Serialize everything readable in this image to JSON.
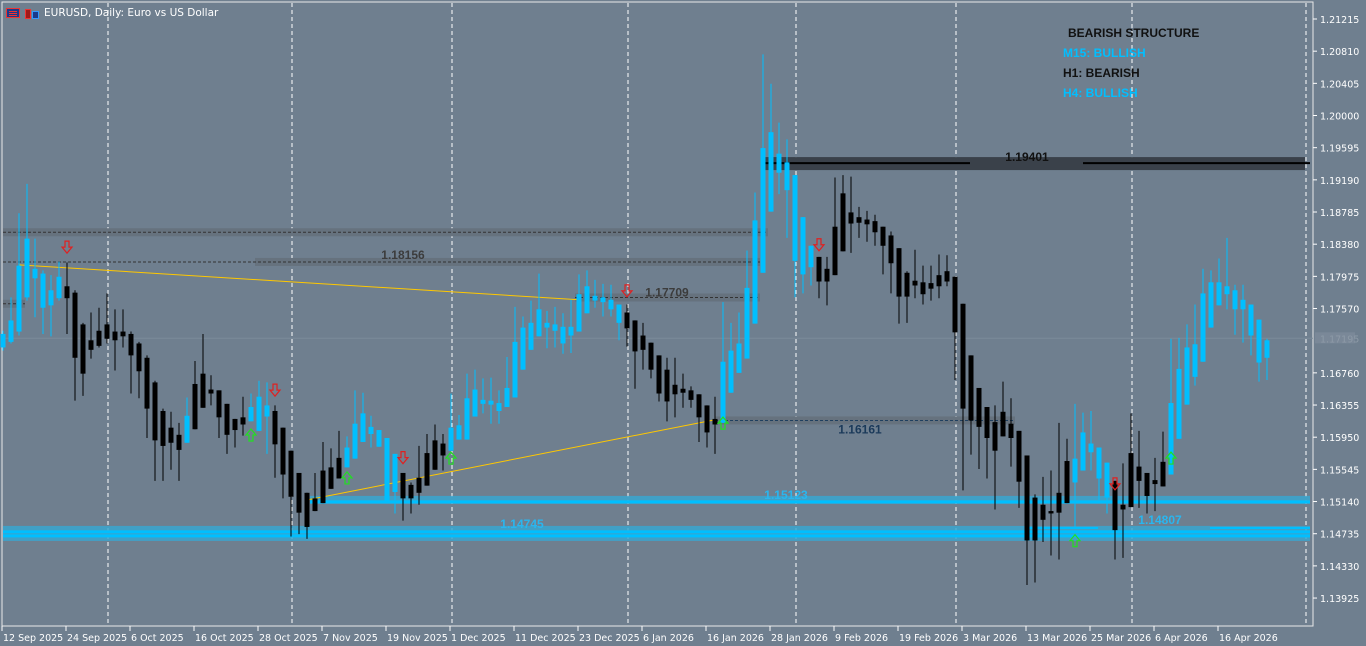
{
  "window": {
    "title": "EURUSD, Daily:  Euro vs US Dollar",
    "icons": [
      "chart-bars-icon",
      "chart-window-icon"
    ]
  },
  "structure_panel": {
    "title": "BEARISH STRUCTURE",
    "rows": [
      {
        "label": "M15: BULLISH",
        "state": "bull"
      },
      {
        "label": "H1: BEARISH",
        "state": "bear"
      },
      {
        "label": "H4: BULLISH",
        "state": "bull"
      }
    ]
  },
  "colors": {
    "background": "#6f7f8f",
    "bull": "#00bfff",
    "bear": "#000000",
    "trendline": "#ffc800",
    "sell_arrow": "#e02020",
    "buy_arrow": "#20e020",
    "grid_separator": "#ffffff"
  },
  "chart_data": {
    "type": "candlestick",
    "symbol": "EURUSD",
    "timeframe": "Daily",
    "ylim": [
      1.1359,
      1.2145
    ],
    "current_price": "1.17195",
    "price_ticks": [
      "1.21215",
      "1.20810",
      "1.20405",
      "1.20000",
      "1.19595",
      "1.19190",
      "1.18785",
      "1.18380",
      "1.17975",
      "1.17570",
      "1.16760",
      "1.16355",
      "1.15950",
      "1.15545",
      "1.15140",
      "1.14735",
      "1.14330",
      "1.13925"
    ],
    "date_ticks": [
      "12 Sep 2025",
      "24 Sep 2025",
      "6 Oct 2025",
      "16 Oct 2025",
      "28 Oct 2025",
      "7 Nov 2025",
      "19 Nov 2025",
      "1 Dec 2025",
      "11 Dec 2025",
      "23 Dec 2025",
      "6 Jan 2026",
      "16 Jan 2026",
      "28 Jan 2026",
      "9 Feb 2026",
      "19 Feb 2026",
      "3 Mar 2026",
      "13 Mar 2026",
      "25 Mar 2026",
      "6 Apr 2026",
      "16 Apr 2026"
    ],
    "candles_ohlc_trend": [
      [
        1.1708,
        1.1729,
        1.1704,
        1.1725,
        1
      ],
      [
        1.1715,
        1.1771,
        1.1713,
        1.1742,
        1
      ],
      [
        1.1728,
        1.1877,
        1.1723,
        1.1811,
        1
      ],
      [
        1.1771,
        1.1914,
        1.1767,
        1.1845,
        1
      ],
      [
        1.1795,
        1.1845,
        1.1746,
        1.1807,
        1
      ],
      [
        1.1801,
        1.1805,
        1.1725,
        1.1758,
        1
      ],
      [
        1.1761,
        1.1799,
        1.1722,
        1.178,
        1
      ],
      [
        1.177,
        1.1816,
        1.1767,
        1.1797,
        1
      ],
      [
        1.1785,
        1.1815,
        1.1725,
        1.177,
        0
      ],
      [
        1.1777,
        1.178,
        1.1641,
        1.1695,
        0
      ],
      [
        1.1737,
        1.1739,
        1.1647,
        1.1675,
        0
      ],
      [
        1.1717,
        1.1752,
        1.1694,
        1.1705,
        0
      ],
      [
        1.1729,
        1.1758,
        1.1708,
        1.171,
        0
      ],
      [
        1.1737,
        1.1776,
        1.1713,
        1.1719,
        0
      ],
      [
        1.1728,
        1.1756,
        1.1679,
        1.1717,
        0
      ],
      [
        1.1728,
        1.1756,
        1.1708,
        1.1722,
        0
      ],
      [
        1.1725,
        1.1728,
        1.165,
        1.1698,
        0
      ],
      [
        1.1713,
        1.1715,
        1.1644,
        1.1678,
        0
      ],
      [
        1.1695,
        1.1698,
        1.1594,
        1.1631,
        0
      ],
      [
        1.1664,
        1.1666,
        1.154,
        1.1591,
        0
      ],
      [
        1.1628,
        1.1631,
        1.154,
        1.1584,
        0
      ],
      [
        1.1607,
        1.1627,
        1.1554,
        1.1588,
        0
      ],
      [
        1.1598,
        1.1613,
        1.154,
        1.1579,
        0
      ],
      [
        1.1588,
        1.1645,
        1.1588,
        1.1622,
        1
      ],
      [
        1.1605,
        1.1691,
        1.1605,
        1.1662,
        0
      ],
      [
        1.1632,
        1.1725,
        1.1632,
        1.1675,
        0
      ],
      [
        1.1655,
        1.1673,
        1.1635,
        1.165,
        0
      ],
      [
        1.1654,
        1.1654,
        1.1594,
        1.162,
        0
      ],
      [
        1.1637,
        1.1637,
        1.1574,
        1.1598,
        0
      ],
      [
        1.1618,
        1.1618,
        1.1582,
        1.1604,
        0
      ],
      [
        1.162,
        1.1646,
        1.1597,
        1.1611,
        0
      ],
      [
        1.1615,
        1.165,
        1.1615,
        1.1633,
        1
      ],
      [
        1.1603,
        1.1666,
        1.1603,
        1.1646,
        1
      ],
      [
        1.1635,
        1.1664,
        1.1574,
        1.1621,
        1
      ],
      [
        1.1628,
        1.1635,
        1.1544,
        1.1586,
        0
      ],
      [
        1.1607,
        1.1607,
        1.1518,
        1.1548,
        0
      ],
      [
        1.1578,
        1.1578,
        1.147,
        1.152,
        0
      ],
      [
        1.155,
        1.155,
        1.1473,
        1.15,
        0
      ],
      [
        1.1525,
        1.1525,
        1.1467,
        1.1482,
        0
      ],
      [
        1.1502,
        1.155,
        1.1502,
        1.1518,
        0
      ],
      [
        1.1512,
        1.1589,
        1.1512,
        1.1553,
        0
      ],
      [
        1.153,
        1.1581,
        1.153,
        1.1557,
        0
      ],
      [
        1.1543,
        1.1603,
        1.1543,
        1.1569,
        0
      ],
      [
        1.1557,
        1.1596,
        1.1557,
        1.1582,
        1
      ],
      [
        1.1568,
        1.1654,
        1.1568,
        1.1612,
        1
      ],
      [
        1.1589,
        1.1651,
        1.1589,
        1.1625,
        1
      ],
      [
        1.1608,
        1.1622,
        1.1582,
        1.1599,
        1
      ],
      [
        1.1604,
        1.1604,
        1.1583,
        1.1583,
        1
      ],
      [
        1.1594,
        1.1594,
        1.1515,
        1.1515,
        1
      ],
      [
        1.1574,
        1.1574,
        1.1499,
        1.1526,
        1
      ],
      [
        1.155,
        1.155,
        1.149,
        1.1518,
        0
      ],
      [
        1.1535,
        1.1538,
        1.1499,
        1.1518,
        0
      ],
      [
        1.1525,
        1.1584,
        1.151,
        1.1544,
        0
      ],
      [
        1.1534,
        1.1599,
        1.1534,
        1.1575,
        0
      ],
      [
        1.1554,
        1.1611,
        1.1554,
        1.1591,
        0
      ],
      [
        1.1572,
        1.1599,
        1.1553,
        1.1587,
        0
      ],
      [
        1.1578,
        1.165,
        1.1578,
        1.1607,
        1
      ],
      [
        1.1592,
        1.1623,
        1.1592,
        1.161,
        1
      ],
      [
        1.1592,
        1.1675,
        1.1592,
        1.1644,
        1
      ],
      [
        1.1621,
        1.168,
        1.1621,
        1.1655,
        1
      ],
      [
        1.1637,
        1.1669,
        1.1625,
        1.1642,
        1
      ],
      [
        1.1636,
        1.167,
        1.1612,
        1.1641,
        1
      ],
      [
        1.1628,
        1.1654,
        1.1612,
        1.1638,
        1
      ],
      [
        1.1633,
        1.1696,
        1.1633,
        1.1657,
        1
      ],
      [
        1.1645,
        1.1759,
        1.1645,
        1.1715,
        1
      ],
      [
        1.168,
        1.1747,
        1.168,
        1.1733,
        1
      ],
      [
        1.1705,
        1.1767,
        1.1705,
        1.1739,
        1
      ],
      [
        1.1722,
        1.1801,
        1.1722,
        1.1756,
        1
      ],
      [
        1.1739,
        1.1754,
        1.1707,
        1.1733,
        1
      ],
      [
        1.1737,
        1.1759,
        1.1708,
        1.1729,
        1
      ],
      [
        1.1734,
        1.1751,
        1.17,
        1.1713,
        1
      ],
      [
        1.1723,
        1.1768,
        1.1701,
        1.1734,
        1
      ],
      [
        1.1728,
        1.18,
        1.1728,
        1.1775,
        1
      ],
      [
        1.1751,
        1.1805,
        1.1751,
        1.1785,
        1
      ],
      [
        1.1773,
        1.1793,
        1.1758,
        1.1767,
        1
      ],
      [
        1.1771,
        1.1788,
        1.1747,
        1.1765,
        1
      ],
      [
        1.1768,
        1.1787,
        1.1747,
        1.1756,
        1
      ],
      [
        1.1762,
        1.1762,
        1.1717,
        1.1739,
        1
      ],
      [
        1.1752,
        1.1762,
        1.1709,
        1.1732,
        0
      ],
      [
        1.1742,
        1.1742,
        1.1656,
        1.1703,
        0
      ],
      [
        1.1723,
        1.1739,
        1.168,
        1.1705,
        0
      ],
      [
        1.1714,
        1.1714,
        1.1669,
        1.168,
        0
      ],
      [
        1.1698,
        1.1698,
        1.164,
        1.165,
        0
      ],
      [
        1.168,
        1.1695,
        1.1615,
        1.164,
        0
      ],
      [
        1.1661,
        1.1695,
        1.162,
        1.1649,
        0
      ],
      [
        1.1656,
        1.1675,
        1.1632,
        1.1651,
        0
      ],
      [
        1.1654,
        1.1659,
        1.1632,
        1.1642,
        0
      ],
      [
        1.1649,
        1.1649,
        1.1589,
        1.162,
        0
      ],
      [
        1.1635,
        1.1635,
        1.1582,
        1.1601,
        0
      ],
      [
        1.1618,
        1.1646,
        1.1574,
        1.1611,
        0
      ],
      [
        1.1613,
        1.1765,
        1.1613,
        1.169,
        1
      ],
      [
        1.1651,
        1.1739,
        1.1651,
        1.1704,
        1
      ],
      [
        1.1676,
        1.1752,
        1.1676,
        1.1713,
        1
      ],
      [
        1.1694,
        1.183,
        1.1694,
        1.1783,
        1
      ],
      [
        1.1738,
        1.1903,
        1.1738,
        1.1868,
        1
      ],
      [
        1.1802,
        1.2077,
        1.1802,
        1.1959,
        1
      ],
      [
        1.1879,
        1.204,
        1.1879,
        1.1979,
        1
      ],
      [
        1.1928,
        1.1991,
        1.1901,
        1.1952,
        1
      ],
      [
        1.1941,
        1.197,
        1.1846,
        1.1906,
        1
      ],
      [
        1.1925,
        1.1925,
        1.1771,
        1.1817,
        1
      ],
      [
        1.1872,
        1.1872,
        1.1776,
        1.18,
        1
      ],
      [
        1.1836,
        1.1836,
        1.1786,
        1.1809,
        1
      ],
      [
        1.1822,
        1.1822,
        1.177,
        1.1791,
        0
      ],
      [
        1.1807,
        1.1822,
        1.1761,
        1.1791,
        0
      ],
      [
        1.1799,
        1.1922,
        1.1799,
        1.186,
        0
      ],
      [
        1.1829,
        1.1925,
        1.1829,
        1.1902,
        0
      ],
      [
        1.1878,
        1.1923,
        1.1827,
        1.1864,
        0
      ],
      [
        1.1872,
        1.1885,
        1.1846,
        1.1865,
        0
      ],
      [
        1.1869,
        1.188,
        1.1841,
        1.1863,
        0
      ],
      [
        1.1867,
        1.1875,
        1.1836,
        1.1853,
        0
      ],
      [
        1.186,
        1.186,
        1.18,
        1.1836,
        0
      ],
      [
        1.1849,
        1.1854,
        1.1776,
        1.1814,
        0
      ],
      [
        1.1833,
        1.1833,
        1.1738,
        1.1772,
        0
      ],
      [
        1.1802,
        1.1804,
        1.1739,
        1.1772,
        0
      ],
      [
        1.1792,
        1.1831,
        1.177,
        1.1786,
        0
      ],
      [
        1.179,
        1.1811,
        1.1762,
        1.1775,
        0
      ],
      [
        1.1789,
        1.1811,
        1.1767,
        1.1782,
        0
      ],
      [
        1.1785,
        1.1825,
        1.177,
        1.1799,
        0
      ],
      [
        1.1791,
        1.1824,
        1.1785,
        1.1804,
        0
      ],
      [
        1.1797,
        1.1797,
        1.1667,
        1.1727,
        0
      ],
      [
        1.1763,
        1.1763,
        1.1528,
        1.1631,
        0
      ],
      [
        1.1698,
        1.1698,
        1.1573,
        1.1616,
        0
      ],
      [
        1.1657,
        1.1657,
        1.1555,
        1.1608,
        0
      ],
      [
        1.1633,
        1.1633,
        1.1543,
        1.1594,
        0
      ],
      [
        1.1614,
        1.1635,
        1.1504,
        1.1578,
        0
      ],
      [
        1.1596,
        1.1665,
        1.1596,
        1.1627,
        0
      ],
      [
        1.1612,
        1.1644,
        1.1558,
        1.1594,
        0
      ],
      [
        1.1603,
        1.1603,
        1.1506,
        1.1539,
        0
      ],
      [
        1.1572,
        1.1572,
        1.1409,
        1.1465,
        0
      ],
      [
        1.1465,
        1.1523,
        1.1412,
        1.1519,
        0
      ],
      [
        1.151,
        1.1545,
        1.1463,
        1.1491,
        0
      ],
      [
        1.1502,
        1.1553,
        1.1446,
        1.1499,
        0
      ],
      [
        1.15,
        1.1613,
        1.1441,
        1.1525,
        0
      ],
      [
        1.1512,
        1.1593,
        1.1512,
        1.1565,
        0
      ],
      [
        1.1538,
        1.1637,
        1.148,
        1.1568,
        1
      ],
      [
        1.1553,
        1.1626,
        1.1553,
        1.1601,
        1
      ],
      [
        1.1587,
        1.1628,
        1.1553,
        1.1576,
        1
      ],
      [
        1.1582,
        1.1582,
        1.1516,
        1.1543,
        1
      ],
      [
        1.1563,
        1.1563,
        1.1499,
        1.1519,
        1
      ],
      [
        1.154,
        1.154,
        1.1441,
        1.1478,
        0
      ],
      [
        1.151,
        1.1562,
        1.1443,
        1.1504,
        0
      ],
      [
        1.1507,
        1.1625,
        1.1507,
        1.1575,
        0
      ],
      [
        1.1558,
        1.1603,
        1.1506,
        1.154,
        0
      ],
      [
        1.1521,
        1.155,
        1.1499,
        1.155,
        0
      ],
      [
        1.1536,
        1.1569,
        1.1502,
        1.1541,
        0
      ],
      [
        1.1533,
        1.1602,
        1.1533,
        1.1564,
        0
      ],
      [
        1.1548,
        1.1719,
        1.1548,
        1.1638,
        1
      ],
      [
        1.1593,
        1.172,
        1.1593,
        1.1681,
        1
      ],
      [
        1.1636,
        1.1737,
        1.1636,
        1.1708,
        1
      ],
      [
        1.1671,
        1.1762,
        1.166,
        1.1712,
        1
      ],
      [
        1.169,
        1.1807,
        1.169,
        1.1776,
        1
      ],
      [
        1.1733,
        1.1805,
        1.1733,
        1.179,
        1
      ],
      [
        1.1761,
        1.182,
        1.1761,
        1.179,
        1
      ],
      [
        1.1785,
        1.1846,
        1.1756,
        1.1775,
        1
      ],
      [
        1.178,
        1.1787,
        1.1724,
        1.1756,
        1
      ],
      [
        1.1768,
        1.1787,
        1.1714,
        1.1756,
        1
      ],
      [
        1.1762,
        1.1762,
        1.1698,
        1.1723,
        1
      ],
      [
        1.1743,
        1.1743,
        1.1665,
        1.1689,
        1
      ],
      [
        1.1695,
        1.1719,
        1.1667,
        1.1717,
        1
      ]
    ],
    "levels": [
      {
        "price": 1.1853,
        "label": "",
        "style": "dashed"
      },
      {
        "price": 1.18156,
        "label": "1.18156",
        "style": "dashed"
      },
      {
        "price": 1.17709,
        "label": "1.17709",
        "style": "dashed"
      },
      {
        "price": 1.1763,
        "label": "",
        "style": "dashed"
      },
      {
        "price": 1.19401,
        "label": "1.19401",
        "style": "solid-black"
      },
      {
        "price": 1.16161,
        "label": "1.16161",
        "style": "dashed-blue"
      },
      {
        "price": 1.15123,
        "label": "1.15123",
        "style": "cyan"
      },
      {
        "price": 1.14745,
        "label": "1.14745",
        "style": "cyan"
      },
      {
        "price": 1.14807,
        "label": "1.14807",
        "style": "cyan-thin"
      }
    ],
    "trendlines": [
      {
        "from": {
          "bar": 2,
          "price": 1.1812
        },
        "to": {
          "bar": 72,
          "price": 1.1768
        }
      },
      {
        "from": {
          "bar": 38,
          "price": 1.1516
        },
        "to": {
          "bar": 89,
          "price": 1.1617
        }
      }
    ],
    "signals": [
      {
        "bar": 8,
        "type": "sell",
        "price": 1.1833
      },
      {
        "bar": 34,
        "type": "sell",
        "price": 1.1653
      },
      {
        "bar": 50,
        "type": "sell",
        "price": 1.1568
      },
      {
        "bar": 78,
        "type": "sell",
        "price": 1.1778
      },
      {
        "bar": 102,
        "type": "sell",
        "price": 1.1836
      },
      {
        "bar": 139,
        "type": "sell",
        "price": 1.1535
      },
      {
        "bar": 31,
        "type": "buy",
        "price": 1.1599
      },
      {
        "bar": 43,
        "type": "buy",
        "price": 1.1545
      },
      {
        "bar": 56,
        "type": "buy",
        "price": 1.157
      },
      {
        "bar": 90,
        "type": "buy",
        "price": 1.1614
      },
      {
        "bar": 134,
        "type": "buy",
        "price": 1.1466
      },
      {
        "bar": 146,
        "type": "buy",
        "price": 1.157
      }
    ]
  }
}
